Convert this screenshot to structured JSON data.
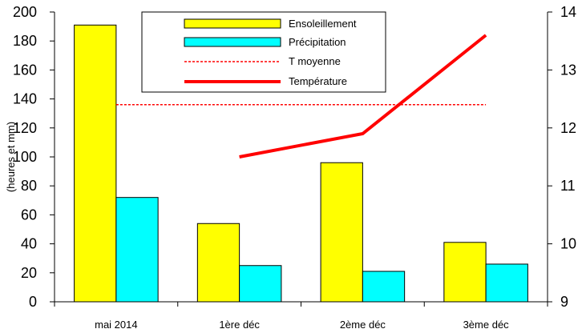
{
  "chart_data": {
    "type": "bar",
    "categories": [
      "mai 2014",
      "1ère déc",
      "2ème déc",
      "3ème déc"
    ],
    "series": [
      {
        "name": "Ensoleillement",
        "kind": "bar",
        "axis": "left",
        "color": "#ffff00",
        "values": [
          191,
          54,
          96,
          41
        ]
      },
      {
        "name": "Précipitation",
        "kind": "bar",
        "axis": "left",
        "color": "#00ffff",
        "values": [
          72,
          25,
          21,
          26
        ]
      },
      {
        "name": "T moyenne",
        "kind": "line-dashed",
        "axis": "right",
        "color": "#ff0000",
        "values": [
          12.4,
          12.4,
          12.4,
          12.4
        ]
      },
      {
        "name": "Température",
        "kind": "line",
        "axis": "right",
        "color": "#ff0000",
        "values": [
          null,
          11.5,
          11.9,
          13.6
        ]
      }
    ],
    "ylabel": "(heures et mm)",
    "ylim": [
      0,
      200
    ],
    "yticks": [
      "0",
      "20",
      "40",
      "60",
      "80",
      "100",
      "120",
      "140",
      "160",
      "180",
      "200"
    ],
    "y2lim": [
      9,
      14
    ],
    "y2ticks": [
      "9",
      "10",
      "11",
      "12",
      "13",
      "14"
    ],
    "legend_position": "top-center",
    "grid": false
  }
}
